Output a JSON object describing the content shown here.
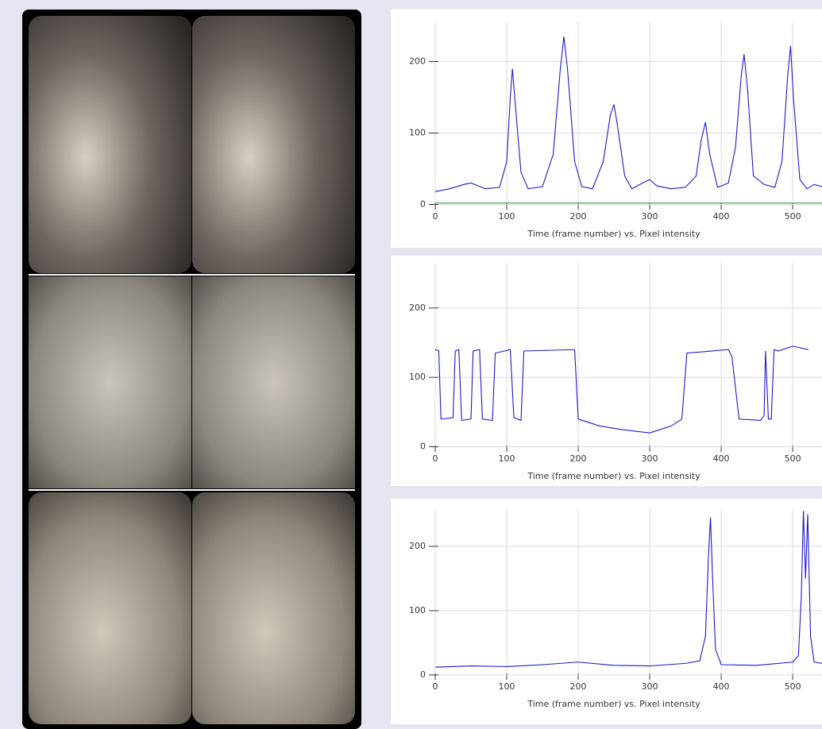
{
  "chart_data": [
    {
      "type": "line",
      "xlabel": "Time (frame number) vs. Pixel intensity",
      "x": [
        0,
        20,
        40,
        50,
        70,
        90,
        100,
        105,
        108,
        112,
        120,
        130,
        150,
        165,
        175,
        180,
        185,
        195,
        205,
        220,
        235,
        245,
        250,
        255,
        265,
        275,
        290,
        300,
        310,
        330,
        350,
        365,
        372,
        378,
        384,
        395,
        410,
        420,
        428,
        432,
        437,
        445,
        460,
        475,
        485,
        493,
        497,
        501,
        510,
        520,
        530,
        541
      ],
      "series": [
        {
          "color": "#1a1ad0",
          "values": [
            18,
            22,
            28,
            30,
            22,
            24,
            60,
            150,
            190,
            140,
            45,
            22,
            25,
            70,
            190,
            235,
            190,
            60,
            25,
            22,
            60,
            125,
            140,
            110,
            40,
            22,
            30,
            35,
            26,
            22,
            24,
            40,
            90,
            115,
            70,
            24,
            30,
            80,
            180,
            210,
            160,
            40,
            28,
            24,
            60,
            180,
            222,
            150,
            35,
            22,
            28,
            25
          ]
        },
        {
          "color": "#3c9a3c",
          "values": [
            2,
            2,
            2,
            2,
            2,
            2,
            2,
            2,
            2,
            2,
            2,
            2,
            2,
            2,
            2,
            2,
            2,
            2,
            2,
            2,
            2,
            2,
            2,
            2,
            2,
            2,
            2,
            2,
            2,
            2,
            2,
            2,
            2,
            2,
            2,
            2,
            2,
            2,
            2,
            2,
            2,
            2,
            2,
            2,
            2,
            2,
            2,
            2,
            2,
            2,
            2,
            2
          ]
        }
      ],
      "xlim": [
        0,
        541
      ],
      "ylim": [
        -5,
        255
      ],
      "xticks": [
        0,
        100,
        200,
        300,
        400,
        500
      ],
      "yticks": [
        0,
        100,
        200
      ],
      "grid": true
    },
    {
      "type": "line",
      "xlabel": "Time (frame number) vs. Pixel intensity",
      "x": [
        0,
        5,
        8,
        25,
        28,
        33,
        37,
        50,
        53,
        62,
        66,
        80,
        84,
        105,
        110,
        120,
        124,
        195,
        200,
        230,
        260,
        300,
        330,
        345,
        352,
        410,
        415,
        425,
        455,
        460,
        462,
        466,
        470,
        474,
        480,
        500,
        522
      ],
      "series": [
        {
          "color": "#1a1ad0",
          "values": [
            140,
            138,
            40,
            42,
            138,
            140,
            38,
            40,
            138,
            140,
            40,
            38,
            135,
            140,
            42,
            38,
            138,
            140,
            40,
            30,
            25,
            20,
            30,
            40,
            135,
            140,
            130,
            40,
            38,
            45,
            138,
            40,
            40,
            140,
            138,
            145,
            140
          ]
        }
      ],
      "xlim": [
        0,
        541
      ],
      "ylim": [
        -5,
        265
      ],
      "xticks": [
        0,
        100,
        200,
        300,
        400,
        500
      ],
      "yticks": [
        0,
        100,
        200
      ],
      "grid": true
    },
    {
      "type": "line",
      "xlabel": "Time (frame number) vs. Pixel intensity",
      "x": [
        0,
        50,
        100,
        150,
        200,
        250,
        300,
        350,
        370,
        378,
        382,
        385,
        388,
        392,
        400,
        450,
        500,
        508,
        512,
        515,
        518,
        521,
        525,
        530,
        541
      ],
      "series": [
        {
          "color": "#1a1ad0",
          "values": [
            12,
            14,
            13,
            16,
            20,
            15,
            14,
            18,
            22,
            60,
            180,
            245,
            150,
            40,
            16,
            15,
            20,
            30,
            120,
            255,
            150,
            250,
            60,
            20,
            18
          ]
        }
      ],
      "xlim": [
        0,
        541
      ],
      "ylim": [
        -5,
        258
      ],
      "xticks": [
        0,
        100,
        200,
        300,
        400,
        500
      ],
      "yticks": [
        0,
        100,
        200
      ],
      "grid": true
    }
  ]
}
